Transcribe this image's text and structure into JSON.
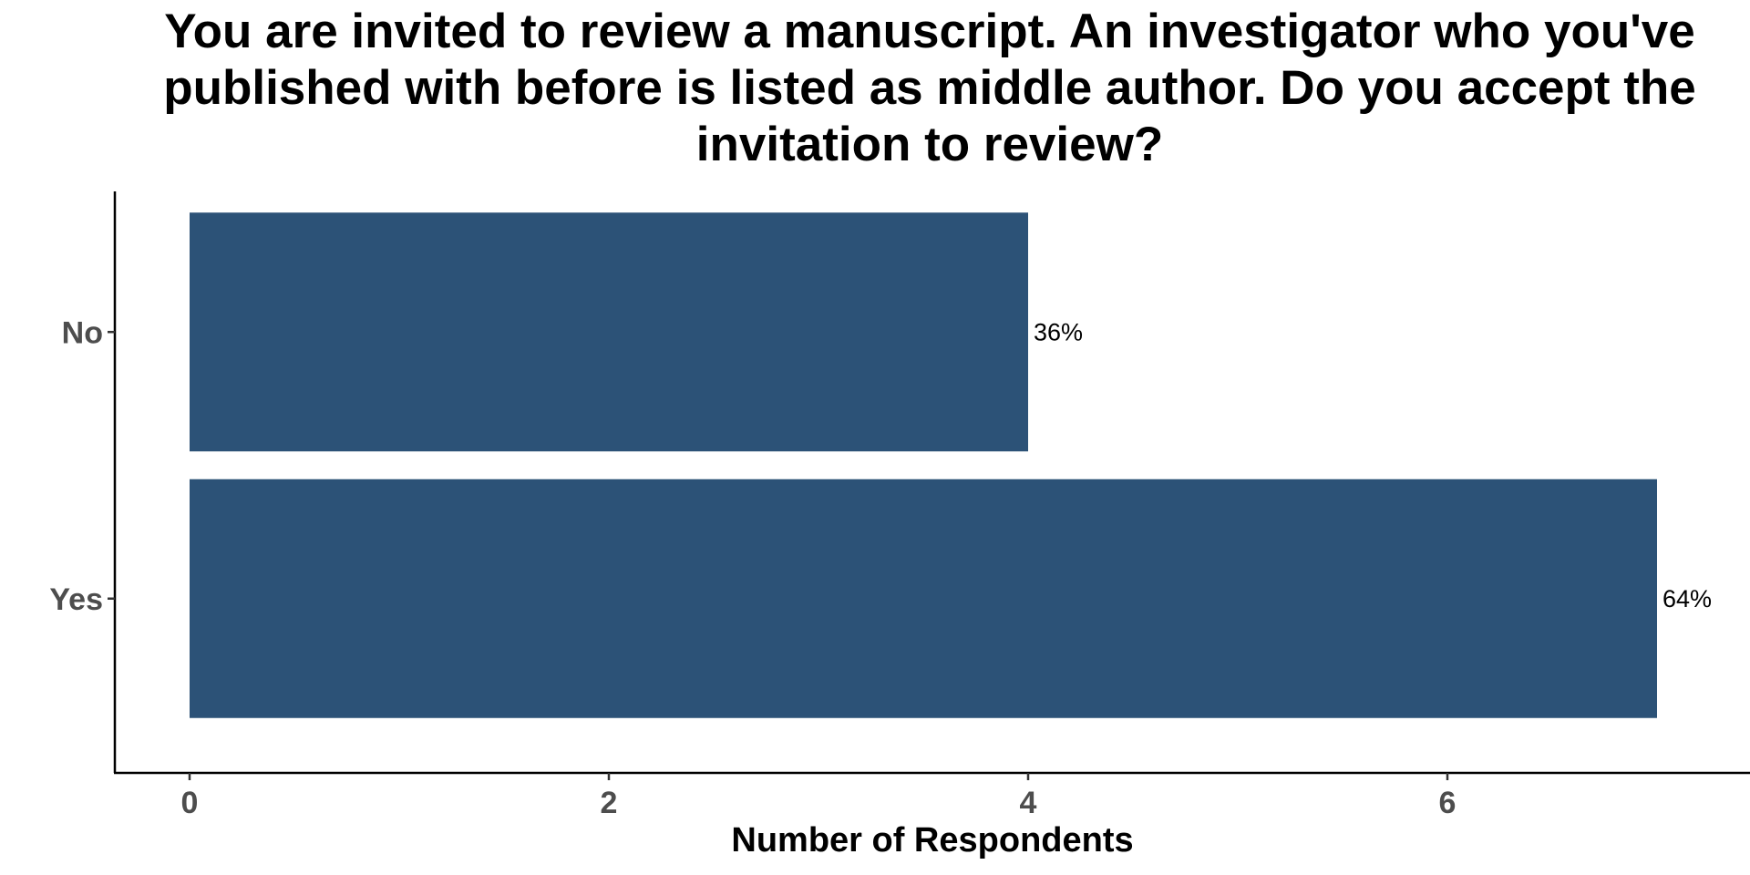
{
  "chart_data": {
    "type": "bar",
    "orientation": "horizontal",
    "title": "You are invited to review a manuscript. An investigator who you've published with before is listed as middle author. Do you accept the invitation to review?",
    "xlabel": "Number of Respondents",
    "ylabel": "",
    "categories": [
      "No",
      "Yes"
    ],
    "values": [
      4,
      7
    ],
    "data_labels": [
      "36%",
      "64%"
    ],
    "xlim": [
      0,
      7.35
    ],
    "xticks": [
      0,
      2,
      4,
      6
    ],
    "bar_color": "#2c5277",
    "grid": false,
    "legend": "none"
  }
}
